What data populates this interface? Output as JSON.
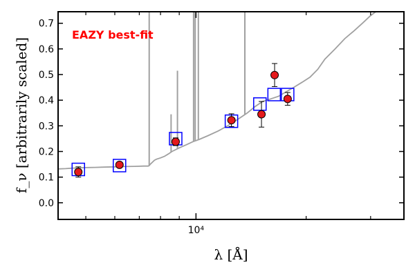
{
  "chart_data": {
    "type": "scatter",
    "annotation": "EAZY best-fit",
    "colors": {
      "annotation": "#ff0000",
      "model_line": "#a0a0a0",
      "observed_marker": "#e41a1c",
      "template_marker": "#0000ff"
    },
    "xlabel": "λ [Å]",
    "ylabel": "f_ν [arbitrarily scaled]",
    "x_scale": "log",
    "xlim": [
      4200,
      37000
    ],
    "ylim": [
      -0.065,
      0.745
    ],
    "grid": false,
    "x_ticks": [
      {
        "value": 10000,
        "label": "10⁴"
      }
    ],
    "y_ticks": [
      {
        "value": 0.0,
        "label": "0.0"
      },
      {
        "value": 0.1,
        "label": "0.1"
      },
      {
        "value": 0.2,
        "label": "0.2"
      },
      {
        "value": 0.3,
        "label": "0.3"
      },
      {
        "value": 0.4,
        "label": "0.4"
      },
      {
        "value": 0.5,
        "label": "0.5"
      },
      {
        "value": 0.6,
        "label": "0.6"
      },
      {
        "value": 0.7,
        "label": "0.7"
      }
    ],
    "series": [
      {
        "kind": "line",
        "points": [
          [
            4200,
            0.132
          ],
          [
            4400,
            0.133
          ],
          [
            4600,
            0.135
          ],
          [
            4800,
            0.136
          ],
          [
            5000,
            0.137
          ],
          [
            5300,
            0.138
          ],
          [
            5600,
            0.139
          ],
          [
            6000,
            0.14
          ],
          [
            6300,
            0.141
          ],
          [
            6800,
            0.142
          ],
          [
            7200,
            0.143
          ],
          [
            7400,
            0.143
          ],
          [
            7450,
            0.145
          ],
          [
            7500,
            0.15
          ],
          [
            7700,
            0.166
          ],
          [
            7800,
            0.17
          ],
          [
            8000,
            0.175
          ],
          [
            8200,
            0.181
          ],
          [
            8400,
            0.19
          ],
          [
            8600,
            0.2
          ],
          [
            9000,
            0.214
          ],
          [
            9400,
            0.226
          ],
          [
            9800,
            0.238
          ],
          [
            10200,
            0.247
          ],
          [
            10800,
            0.262
          ],
          [
            11500,
            0.28
          ],
          [
            12200,
            0.3
          ],
          [
            13000,
            0.325
          ],
          [
            13800,
            0.35
          ],
          [
            14500,
            0.375
          ],
          [
            15200,
            0.395
          ],
          [
            16000,
            0.405
          ],
          [
            16800,
            0.415
          ],
          [
            17500,
            0.43
          ],
          [
            18500,
            0.45
          ],
          [
            19500,
            0.47
          ],
          [
            20500,
            0.49
          ],
          [
            21500,
            0.52
          ],
          [
            22500,
            0.56
          ],
          [
            24000,
            0.6
          ],
          [
            25500,
            0.64
          ],
          [
            27000,
            0.67
          ],
          [
            28500,
            0.7
          ],
          [
            30000,
            0.73
          ],
          [
            31000,
            0.745
          ]
        ],
        "lines": [
          {
            "x": 7450,
            "top": 0.745
          },
          {
            "x": 8550,
            "top": 0.345
          },
          {
            "x": 8900,
            "top": 0.515
          },
          {
            "x": 9850,
            "top": 0.745
          },
          {
            "x": 9950,
            "top": 0.745
          },
          {
            "x": 10150,
            "top": 0.745
          },
          {
            "x": 13600,
            "top": 0.745
          }
        ]
      },
      {
        "kind": "template",
        "points": [
          {
            "x": 4770,
            "y": 0.13
          },
          {
            "x": 6180,
            "y": 0.145
          },
          {
            "x": 8800,
            "y": 0.25
          },
          {
            "x": 12500,
            "y": 0.318
          },
          {
            "x": 14950,
            "y": 0.385
          },
          {
            "x": 16350,
            "y": 0.422
          },
          {
            "x": 17800,
            "y": 0.422
          }
        ]
      },
      {
        "kind": "observed",
        "points": [
          {
            "x": 4770,
            "y": 0.12,
            "err": 0.02
          },
          {
            "x": 6180,
            "y": 0.148,
            "err": 0.005
          },
          {
            "x": 8800,
            "y": 0.238,
            "err": 0.015
          },
          {
            "x": 12500,
            "y": 0.322,
            "err": 0.025
          },
          {
            "x": 15100,
            "y": 0.345,
            "err": 0.05
          },
          {
            "x": 16400,
            "y": 0.498,
            "err": 0.045
          },
          {
            "x": 17800,
            "y": 0.405,
            "err": 0.025
          }
        ]
      }
    ]
  }
}
